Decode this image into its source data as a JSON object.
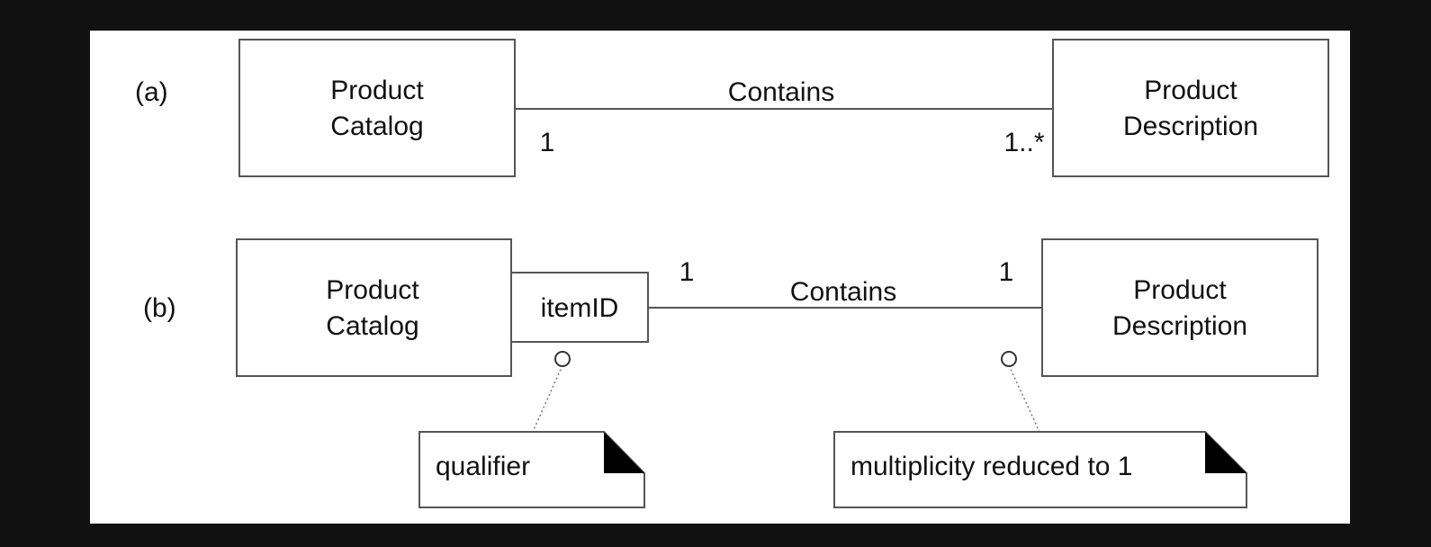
{
  "diagram": {
    "colors": {
      "background": "#111111",
      "canvas": "#ffffff",
      "stroke": "#555555",
      "text": "#111111",
      "fold": "#000000"
    },
    "a": {
      "tag": "(a)",
      "left_class": [
        "Product",
        "Catalog"
      ],
      "right_class": [
        "Product",
        "Description"
      ],
      "association": "Contains",
      "left_multiplicity": "1",
      "right_multiplicity": "1..*"
    },
    "b": {
      "tag": "(b)",
      "left_class": [
        "Product",
        "Catalog"
      ],
      "qualifier_box": "itemID",
      "right_class": [
        "Product",
        "Description"
      ],
      "association": "Contains",
      "left_multiplicity": "1",
      "right_multiplicity": "1",
      "note_qualifier": "qualifier",
      "note_multiplicity": "multiplicity reduced to 1"
    }
  }
}
